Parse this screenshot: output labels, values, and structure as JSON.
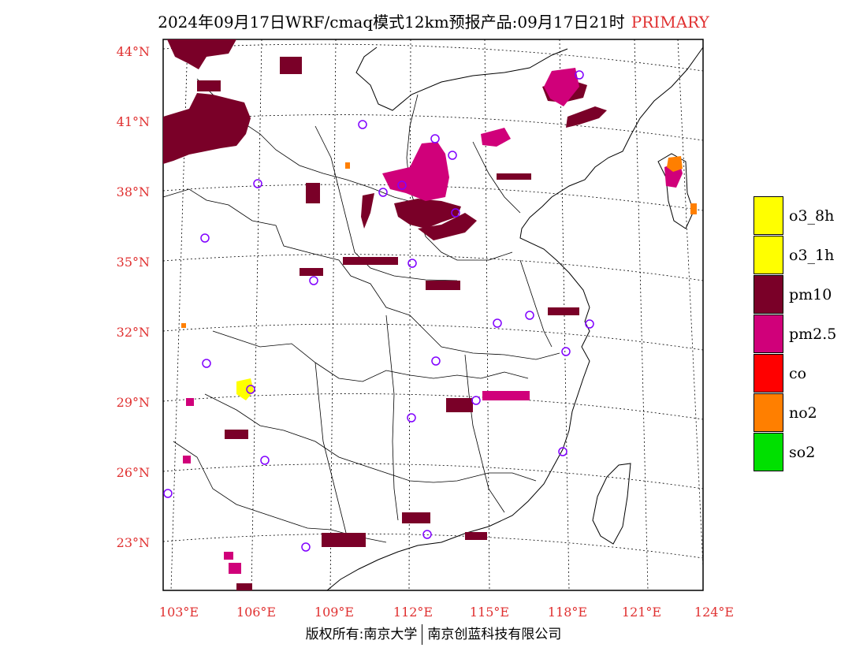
{
  "title": {
    "text": "2024年09月17日WRF/cmaq模式12km预报产品:09月17日21时",
    "tag": "PRIMARY"
  },
  "axes": {
    "lat_labels": [
      "44°N",
      "41°N",
      "38°N",
      "35°N",
      "32°N",
      "29°N",
      "26°N",
      "23°N"
    ],
    "lon_labels": [
      "103°E",
      "106°E",
      "109°E",
      "112°E",
      "115°E",
      "118°E",
      "121°E",
      "124°E"
    ]
  },
  "legend": {
    "items": [
      {
        "label": "o3_8h",
        "color": "#ffff00"
      },
      {
        "label": "o3_1h",
        "color": "#ffff00"
      },
      {
        "label": "pm10",
        "color": "#7a0028"
      },
      {
        "label": "pm2.5",
        "color": "#d0007a"
      },
      {
        "label": "co",
        "color": "#ff0000"
      },
      {
        "label": "no2",
        "color": "#ff7f00"
      },
      {
        "label": "so2",
        "color": "#00e000"
      }
    ]
  },
  "footer": {
    "left": "版权所有:南京大学",
    "right": "南京创蓝科技有限公司"
  },
  "colors": {
    "label_red": "#e03030",
    "pm10": "#7a0028",
    "pm25": "#d0007a",
    "o3": "#ffff00",
    "no2": "#ff7f00",
    "station_circle": "#8000ff"
  }
}
